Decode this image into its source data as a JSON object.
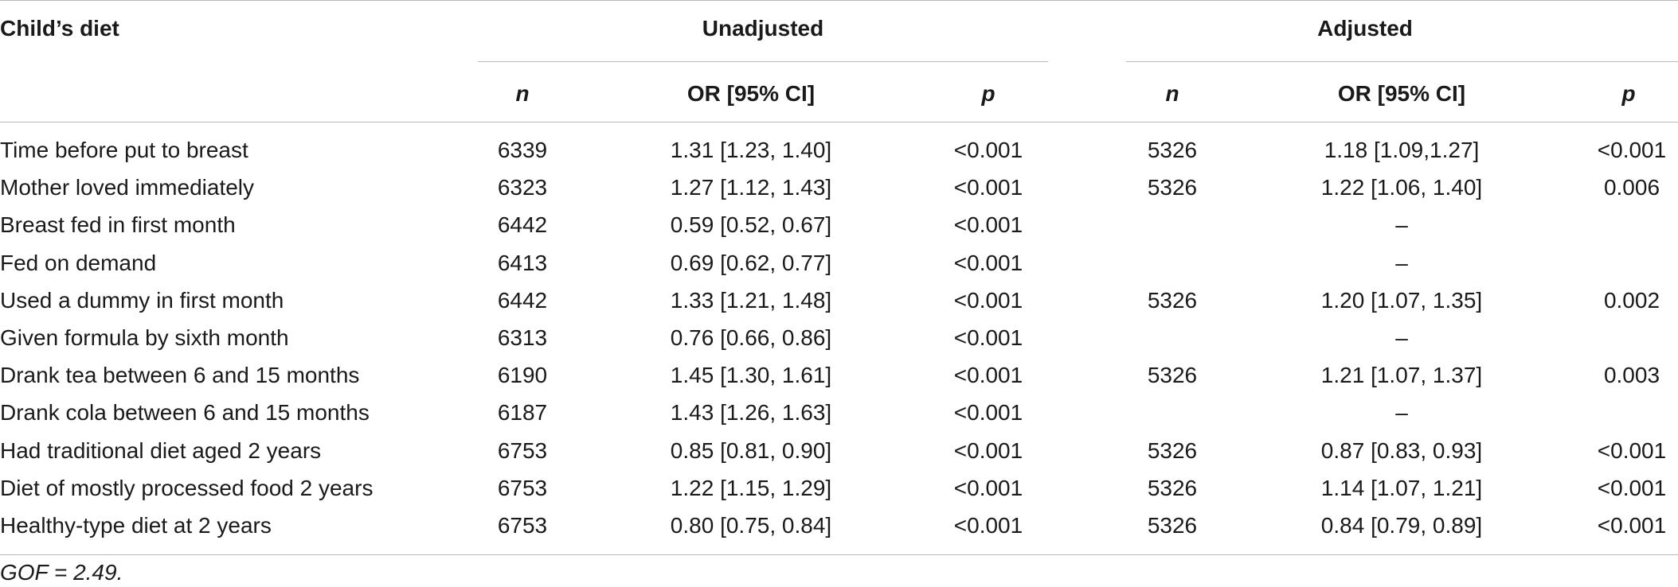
{
  "table": {
    "stub_header": "Child’s diet",
    "group_headers": {
      "unadjusted": "Unadjusted",
      "adjusted": "Adjusted"
    },
    "sub_headers": {
      "n": "n",
      "or": "OR [95% CI]",
      "p": "p"
    },
    "rows": [
      {
        "label": "Time before put to breast",
        "u_n": "6339",
        "u_or": "1.31 [1.23, 1.40]",
        "u_p": "<0.001",
        "a_n": "5326",
        "a_or": "1.18 [1.09,1.27]",
        "a_p": "<0.001"
      },
      {
        "label": "Mother loved immediately",
        "u_n": "6323",
        "u_or": "1.27 [1.12, 1.43]",
        "u_p": "<0.001",
        "a_n": "5326",
        "a_or": "1.22 [1.06, 1.40]",
        "a_p": "0.006"
      },
      {
        "label": "Breast fed in first month",
        "u_n": "6442",
        "u_or": "0.59 [0.52, 0.67]",
        "u_p": "<0.001",
        "a_n": "",
        "a_or": "–",
        "a_p": ""
      },
      {
        "label": "Fed on demand",
        "u_n": "6413",
        "u_or": "0.69 [0.62, 0.77]",
        "u_p": "<0.001",
        "a_n": "",
        "a_or": "–",
        "a_p": ""
      },
      {
        "label": "Used a dummy in first month",
        "u_n": "6442",
        "u_or": "1.33 [1.21, 1.48]",
        "u_p": "<0.001",
        "a_n": "5326",
        "a_or": "1.20 [1.07, 1.35]",
        "a_p": "0.002"
      },
      {
        "label": "Given formula by sixth month",
        "u_n": "6313",
        "u_or": "0.76 [0.66, 0.86]",
        "u_p": "<0.001",
        "a_n": "",
        "a_or": "–",
        "a_p": ""
      },
      {
        "label": "Drank tea between 6 and 15 months",
        "u_n": "6190",
        "u_or": "1.45 [1.30, 1.61]",
        "u_p": "<0.001",
        "a_n": "5326",
        "a_or": "1.21 [1.07, 1.37]",
        "a_p": "0.003"
      },
      {
        "label": "Drank cola between 6 and 15 months",
        "u_n": "6187",
        "u_or": "1.43 [1.26, 1.63]",
        "u_p": "<0.001",
        "a_n": "",
        "a_or": "–",
        "a_p": ""
      },
      {
        "label": "Had traditional diet aged 2 years",
        "u_n": "6753",
        "u_or": "0.85 [0.81, 0.90]",
        "u_p": "<0.001",
        "a_n": "5326",
        "a_or": "0.87 [0.83, 0.93]",
        "a_p": "<0.001"
      },
      {
        "label": "Diet of mostly processed food 2 years",
        "u_n": "6753",
        "u_or": "1.22 [1.15, 1.29]",
        "u_p": "<0.001",
        "a_n": "5326",
        "a_or": "1.14 [1.07, 1.21]",
        "a_p": "<0.001"
      },
      {
        "label": "Healthy-type diet at 2 years",
        "u_n": "6753",
        "u_or": "0.80 [0.75, 0.84]",
        "u_p": "<0.001",
        "a_n": "5326",
        "a_or": "0.84 [0.79, 0.89]",
        "a_p": "<0.001"
      }
    ],
    "footnote": "GOF = 2.49."
  }
}
